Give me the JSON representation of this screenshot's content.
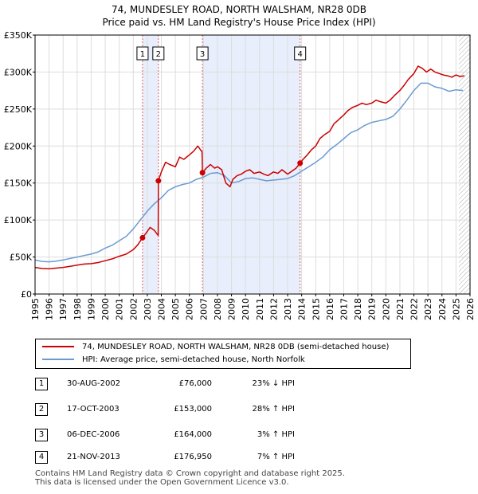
{
  "title": {
    "line1": "74, MUNDESLEY ROAD, NORTH WALSHAM, NR28 0DB",
    "line2": "Price paid vs. HM Land Registry's House Price Index (HPI)"
  },
  "legend": {
    "property": "74, MUNDESLEY ROAD, NORTH WALSHAM, NR28 0DB (semi-detached house)",
    "hpi": "HPI: Average price, semi-detached house, North Norfolk"
  },
  "colors": {
    "property": "#cc0000",
    "hpi": "#6a9bd1",
    "shade": "#e8eefb",
    "marker_line": "#e06060"
  },
  "transactions": [
    {
      "num": "1",
      "date": "30-AUG-2002",
      "price": "£76,000",
      "hpi": "23% ↓ HPI",
      "t": 2002.66,
      "value": 76000
    },
    {
      "num": "2",
      "date": "17-OCT-2003",
      "price": "£153,000",
      "hpi": "28% ↑ HPI",
      "t": 2003.79,
      "value": 153000
    },
    {
      "num": "3",
      "date": "06-DEC-2006",
      "price": "£164,000",
      "hpi": "3% ↑ HPI",
      "t": 2006.93,
      "value": 164000
    },
    {
      "num": "4",
      "date": "21-NOV-2013",
      "price": "£176,950",
      "hpi": "7% ↑ HPI",
      "t": 2013.89,
      "value": 176950
    }
  ],
  "footer": {
    "line1": "Contains HM Land Registry data © Crown copyright and database right 2025.",
    "line2": "This data is licensed under the Open Government Licence v3.0."
  },
  "chart_data": {
    "type": "line",
    "title": "Price paid vs. HM Land Registry's House Price Index (HPI)",
    "xlim": [
      1995,
      2026
    ],
    "ylim": [
      0,
      350000
    ],
    "yticks": [
      {
        "value": 0,
        "label": "£0"
      },
      {
        "value": 50000,
        "label": "£50K"
      },
      {
        "value": 100000,
        "label": "£100K"
      },
      {
        "value": 150000,
        "label": "£150K"
      },
      {
        "value": 200000,
        "label": "£200K"
      },
      {
        "value": 250000,
        "label": "£250K"
      },
      {
        "value": 300000,
        "label": "£300K"
      },
      {
        "value": 350000,
        "label": "£350K"
      }
    ],
    "xticks": [
      "1995",
      "1996",
      "1997",
      "1998",
      "1999",
      "2000",
      "2001",
      "2002",
      "2003",
      "2004",
      "2005",
      "2006",
      "2007",
      "2008",
      "2009",
      "2010",
      "2011",
      "2012",
      "2013",
      "2014",
      "2015",
      "2016",
      "2017",
      "2018",
      "2019",
      "2020",
      "2021",
      "2022",
      "2023",
      "2024",
      "2025",
      "2026"
    ],
    "shaded_ranges": [
      [
        2002.66,
        2003.79
      ],
      [
        2006.93,
        2013.89
      ]
    ],
    "hatched_from": 2025.2,
    "series": [
      {
        "name": "74, MUNDESLEY ROAD, NORTH WALSHAM, NR28 0DB (semi-detached house)",
        "x": [
          1995,
          1995.5,
          1996,
          1996.5,
          1997,
          1997.5,
          1998,
          1998.5,
          1999,
          1999.5,
          2000,
          2000.5,
          2001,
          2001.5,
          2002,
          2002.3,
          2002.66,
          2002.9,
          2003.2,
          2003.5,
          2003.78,
          2003.79,
          2004.0,
          2004.3,
          2004.6,
          2005.0,
          2005.3,
          2005.6,
          2006.0,
          2006.3,
          2006.6,
          2006.9,
          2006.93,
          2007.2,
          2007.5,
          2007.8,
          2008.0,
          2008.3,
          2008.6,
          2008.9,
          2009.1,
          2009.4,
          2009.7,
          2010.0,
          2010.3,
          2010.6,
          2011.0,
          2011.3,
          2011.6,
          2012.0,
          2012.3,
          2012.6,
          2013.0,
          2013.3,
          2013.6,
          2013.89,
          2014.1,
          2014.4,
          2014.7,
          2015.0,
          2015.3,
          2015.6,
          2016.0,
          2016.3,
          2016.6,
          2017.0,
          2017.3,
          2017.6,
          2018.0,
          2018.3,
          2018.6,
          2019.0,
          2019.3,
          2019.6,
          2020.0,
          2020.3,
          2020.6,
          2021.0,
          2021.3,
          2021.6,
          2022.0,
          2022.3,
          2022.6,
          2022.9,
          2023.2,
          2023.5,
          2023.8,
          2024.1,
          2024.4,
          2024.7,
          2025.0,
          2025.3,
          2025.6
        ],
        "y": [
          36000,
          34500,
          34000,
          35000,
          36000,
          37500,
          39000,
          40500,
          41000,
          42500,
          45000,
          47500,
          51000,
          54000,
          60000,
          66000,
          76000,
          82000,
          90000,
          86000,
          79000,
          153000,
          165000,
          178000,
          175000,
          172000,
          185000,
          182000,
          188000,
          193000,
          200000,
          192000,
          164000,
          170000,
          175000,
          170000,
          172000,
          168000,
          150000,
          145000,
          155000,
          160000,
          162000,
          166000,
          168000,
          163000,
          165000,
          162000,
          160000,
          165000,
          163000,
          168000,
          162000,
          166000,
          170000,
          176950,
          182000,
          188000,
          195000,
          200000,
          210000,
          215000,
          220000,
          230000,
          235000,
          242000,
          248000,
          252000,
          255000,
          258000,
          256000,
          258000,
          262000,
          260000,
          258000,
          262000,
          268000,
          275000,
          282000,
          290000,
          298000,
          308000,
          305000,
          300000,
          304000,
          300000,
          298000,
          296000,
          295000,
          293000,
          296000,
          294000,
          295000
        ]
      },
      {
        "name": "HPI: Average price, semi-detached house, North Norfolk",
        "x": [
          1995,
          1995.5,
          1996,
          1996.5,
          1997,
          1997.5,
          1998,
          1998.5,
          1999,
          1999.5,
          2000,
          2000.5,
          2001,
          2001.5,
          2002,
          2002.5,
          2003,
          2003.5,
          2004,
          2004.5,
          2005,
          2005.5,
          2006,
          2006.5,
          2007,
          2007.5,
          2008,
          2008.5,
          2009,
          2009.5,
          2010,
          2010.5,
          2011,
          2011.5,
          2012,
          2012.5,
          2013,
          2013.5,
          2014,
          2014.5,
          2015,
          2015.5,
          2016,
          2016.5,
          2017,
          2017.5,
          2018,
          2018.5,
          2019,
          2019.5,
          2020,
          2020.5,
          2021,
          2021.5,
          2022,
          2022.5,
          2023,
          2023.5,
          2024,
          2024.5,
          2025,
          2025.5
        ],
        "y": [
          46000,
          44000,
          43500,
          44500,
          46000,
          48000,
          50000,
          52000,
          54000,
          57000,
          62000,
          66000,
          72000,
          78000,
          88000,
          100000,
          112000,
          122000,
          130000,
          140000,
          145000,
          148000,
          150000,
          155000,
          158000,
          163000,
          164000,
          160000,
          150000,
          152000,
          156000,
          157000,
          155000,
          153000,
          154000,
          155000,
          156000,
          160000,
          166000,
          172000,
          178000,
          185000,
          195000,
          202000,
          210000,
          218000,
          222000,
          228000,
          232000,
          234000,
          236000,
          240000,
          250000,
          262000,
          275000,
          285000,
          285000,
          280000,
          278000,
          274000,
          276000,
          275000
        ]
      }
    ]
  }
}
